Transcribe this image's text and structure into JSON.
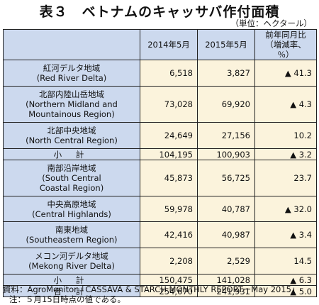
{
  "title": "表３　ベトナムのキャッサバ作付面積",
  "unit": "（単位：ヘクタール）",
  "table": {
    "headers": [
      "",
      "2014年5月",
      "2015年5月",
      "前年同月比\n（増減率、％）"
    ],
    "rows": [
      {
        "label": "紅河デルタ地域\n(Red River Delta)",
        "v2014": "6,518",
        "v2015": "3,827",
        "change": "▲ 41.3",
        "type": "region"
      },
      {
        "label": "北部内陸山岳地域\n(Northern Midland and\nMountainous Region)",
        "v2014": "73,028",
        "v2015": "69,920",
        "change": "▲ 4.3",
        "type": "region"
      },
      {
        "label": "北部中央地域\n(North Central Region)",
        "v2014": "24,649",
        "v2015": "27,156",
        "change": "10.2",
        "type": "region"
      },
      {
        "label": "小 計",
        "v2014": "104,195",
        "v2015": "100,903",
        "change": "▲ 3.2",
        "type": "sub"
      },
      {
        "label": "南部沿岸地域\n(South Central\nCoastal Region)",
        "v2014": "45,873",
        "v2015": "56,725",
        "change": "23.7",
        "type": "region"
      },
      {
        "label": "中央高原地域\n(Central Highlands)",
        "v2014": "59,978",
        "v2015": "40,787",
        "change": "▲ 32.0",
        "type": "region"
      },
      {
        "label": "南東地域\n(Southeastern Region)",
        "v2014": "42,416",
        "v2015": "40,987",
        "change": "▲ 3.4",
        "type": "region"
      },
      {
        "label": "メコン河デルタ地域\n(Mekong River Delta)",
        "v2014": "2,208",
        "v2015": "2,529",
        "change": "14.5",
        "type": "region"
      },
      {
        "label": "小 計",
        "v2014": "150,475",
        "v2015": "141,028",
        "change": "▲ 6.3",
        "type": "sub"
      },
      {
        "label": "合 計",
        "v2014": "254,670",
        "v2015": "241,931",
        "change": "▲ 5.0",
        "type": "total"
      }
    ]
  },
  "source": "資料：AgroMonitor「CASSAVA & STARCH MONTHLY REPORTーMay 2015」",
  "note": "注：５月15日時点の値である。"
}
